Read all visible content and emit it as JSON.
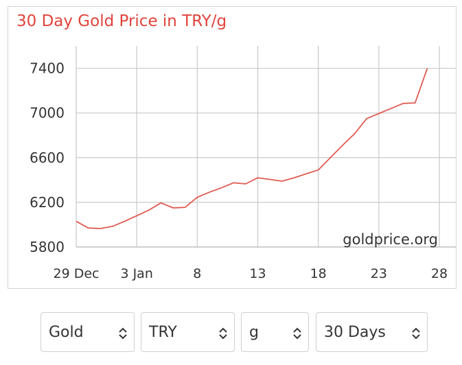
{
  "chart_data": {
    "type": "line",
    "title": "30 Day Gold Price in TRY/g",
    "watermark": "goldprice.org",
    "x_ticks": [
      {
        "label": "29 Dec",
        "day": 0
      },
      {
        "label": "3 Jan",
        "day": 5
      },
      {
        "label": "8",
        "day": 10
      },
      {
        "label": "13",
        "day": 15
      },
      {
        "label": "18",
        "day": 20
      },
      {
        "label": "23",
        "day": 25
      },
      {
        "label": "28",
        "day": 30
      }
    ],
    "xlim": [
      "29 Dec",
      "28 Jan"
    ],
    "y_ticks": [
      5800,
      6200,
      6600,
      7000,
      7400
    ],
    "ylim": [
      5800,
      7600
    ],
    "grid": true,
    "line_color": "#e05a50",
    "series": [
      {
        "x": [
          "29 Dec",
          "30 Dec",
          "31 Dec",
          "1 Jan",
          "2 Jan",
          "3 Jan",
          "4 Jan",
          "5 Jan",
          "6 Jan",
          "7 Jan",
          "8 Jan",
          "9 Jan",
          "10 Jan",
          "11 Jan",
          "12 Jan",
          "13 Jan",
          "14 Jan",
          "15 Jan",
          "16 Jan",
          "17 Jan",
          "18 Jan",
          "19 Jan",
          "20 Jan",
          "21 Jan",
          "22 Jan",
          "23 Jan",
          "24 Jan",
          "25 Jan",
          "26 Jan",
          "27 Jan"
        ],
        "values": [
          6030,
          5970,
          5965,
          5985,
          6030,
          6080,
          6130,
          6195,
          6150,
          6155,
          6245,
          6290,
          6330,
          6375,
          6365,
          6420,
          6405,
          6390,
          6420,
          6455,
          6490,
          6600,
          6710,
          6815,
          6950,
          6995,
          7040,
          7085,
          7090,
          7400
        ]
      }
    ]
  },
  "controls": {
    "metal": "Gold",
    "currency": "TRY",
    "unit": "g",
    "period": "30 Days"
  }
}
